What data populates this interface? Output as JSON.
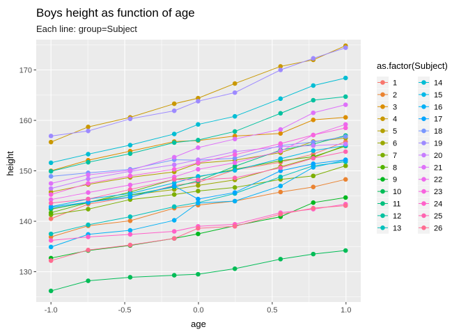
{
  "chart_data": {
    "type": "line",
    "title": "Boys height as function of age",
    "subtitle": "Each line: group=Subject",
    "xlabel": "age",
    "ylabel": "height",
    "xlim": [
      -1.1,
      1.1
    ],
    "ylim": [
      124,
      176
    ],
    "x_ticks": [
      -1.0,
      -0.5,
      0.0,
      0.5,
      1.0
    ],
    "x_tick_labels": [
      "-1.0",
      "-0.5",
      "0.0",
      "0.5",
      "1.0"
    ],
    "y_ticks": [
      130,
      140,
      150,
      160,
      170
    ],
    "y_tick_labels": [
      "130",
      "140",
      "150",
      "160",
      "170"
    ],
    "grid": true,
    "legend_title": "as.factor(Subject)",
    "legend_position": "right",
    "x": [
      -1.0,
      -0.7479,
      -0.463,
      -0.1643,
      -0.0027,
      0.2466,
      0.5562,
      0.7781,
      0.9973
    ],
    "series": [
      {
        "name": "1",
        "color": "#F8766D",
        "values": [
          140.5,
          143.4,
          144.8,
          147.1,
          147.7,
          150.2,
          151.7,
          153.3,
          155.8
        ]
      },
      {
        "name": "2",
        "color": "#EA8331",
        "values": [
          136.9,
          139.1,
          140.1,
          142.6,
          143.2,
          144.0,
          145.8,
          146.8,
          148.3
        ]
      },
      {
        "name": "3",
        "color": "#DB8E00",
        "values": [
          150.0,
          152.1,
          153.9,
          155.8,
          156.0,
          156.9,
          157.4,
          160.1,
          160.6
        ]
      },
      {
        "name": "4",
        "color": "#C99800",
        "values": [
          155.7,
          158.7,
          160.6,
          163.3,
          164.4,
          167.3,
          170.7,
          172.0,
          174.8
        ]
      },
      {
        "name": "5",
        "color": "#B3A000",
        "values": [
          145.8,
          147.3,
          148.7,
          149.8,
          151.5,
          152.1,
          153.6,
          155.8,
          156.5
        ]
      },
      {
        "name": "6",
        "color": "#9AA800",
        "values": [
          142.4,
          143.8,
          145.2,
          146.3,
          147.1,
          148.2,
          150.8,
          152.6,
          155.1
        ]
      },
      {
        "name": "7",
        "color": "#7CAE00",
        "values": [
          141.3,
          142.4,
          144.3,
          145.3,
          146.0,
          146.7,
          148.3,
          149.0,
          151.0
        ]
      },
      {
        "name": "8",
        "color": "#53B400",
        "values": [
          141.7,
          143.7,
          145.8,
          148.3,
          148.8,
          150.3,
          152.0,
          152.8,
          154.9
        ]
      },
      {
        "name": "9",
        "color": "#00B81F",
        "values": [
          132.7,
          134.2,
          135.2,
          136.6,
          137.5,
          139.1,
          140.9,
          143.7,
          144.7
        ]
      },
      {
        "name": "10",
        "color": "#00BC56",
        "values": [
          126.2,
          128.2,
          128.9,
          129.3,
          129.5,
          130.6,
          132.5,
          133.5,
          134.2
        ]
      },
      {
        "name": "11",
        "color": "#00BF7D",
        "values": [
          142.5,
          143.7,
          145.2,
          146.8,
          148.0,
          150.9,
          154.1,
          155.3,
          157.0
        ]
      },
      {
        "name": "12",
        "color": "#00C19F",
        "values": [
          149.9,
          151.7,
          153.4,
          155.6,
          156.1,
          157.8,
          161.4,
          164.0,
          164.7
        ]
      },
      {
        "name": "13",
        "color": "#00C0BB",
        "values": [
          137.5,
          139.3,
          140.9,
          142.9,
          143.7,
          145.5,
          148.8,
          151.0,
          151.8
        ]
      },
      {
        "name": "14",
        "color": "#00BDD4",
        "values": [
          151.6,
          153.3,
          155.1,
          157.3,
          159.2,
          160.8,
          164.3,
          166.9,
          168.4
        ]
      },
      {
        "name": "15",
        "color": "#00B8E7",
        "values": [
          142.9,
          144.4,
          145.5,
          147.6,
          148.9,
          150.1,
          152.4,
          154.0,
          155.0
        ]
      },
      {
        "name": "16",
        "color": "#00B0F6",
        "values": [
          134.9,
          137.4,
          138.2,
          140.2,
          143.6,
          144.0,
          147.0,
          150.7,
          152.1
        ]
      },
      {
        "name": "17",
        "color": "#00A5FF",
        "values": [
          142.8,
          143.8,
          144.8,
          147.0,
          144.4,
          145.7,
          150.0,
          151.4,
          152.2
        ]
      },
      {
        "name": "18",
        "color": "#7997FF",
        "values": [
          148.9,
          149.6,
          150.3,
          152.2,
          152.1,
          152.5,
          155.0,
          155.7,
          156.8
        ]
      },
      {
        "name": "19",
        "color": "#9D8AFF",
        "values": [
          156.9,
          157.9,
          160.3,
          161.9,
          163.8,
          165.5,
          170.0,
          172.3,
          174.4
        ]
      },
      {
        "name": "20",
        "color": "#C77CFF",
        "values": [
          146.5,
          148.4,
          149.9,
          151.2,
          152.2,
          153.8,
          154.8,
          155.0,
          155.3
        ]
      },
      {
        "name": "21",
        "color": "#DE71F9",
        "values": [
          147.5,
          149.2,
          150.1,
          152.7,
          154.6,
          156.3,
          158.2,
          161.5,
          163.1
        ]
      },
      {
        "name": "22",
        "color": "#ED68ED",
        "values": [
          144.3,
          145.7,
          147.2,
          148.8,
          150.3,
          151.6,
          153.9,
          157.1,
          159.2
        ]
      },
      {
        "name": "23",
        "color": "#F863DF",
        "values": [
          145.3,
          147.5,
          149.0,
          150.3,
          151.6,
          153.2,
          155.4,
          157.1,
          158.5
        ]
      },
      {
        "name": "24",
        "color": "#FF61C9",
        "values": [
          136.2,
          136.9,
          137.4,
          138.0,
          139.0,
          139.4,
          141.7,
          142.4,
          143.4
        ]
      },
      {
        "name": "25",
        "color": "#FF64B0",
        "values": [
          143.6,
          144.4,
          146.3,
          148.3,
          148.2,
          148.6,
          150.6,
          152.5,
          153.8
        ]
      },
      {
        "name": "26",
        "color": "#FF6C91",
        "values": [
          132.2,
          134.3,
          135.3,
          136.6,
          138.6,
          139.0,
          141.4,
          142.6,
          143.1
        ]
      }
    ]
  }
}
